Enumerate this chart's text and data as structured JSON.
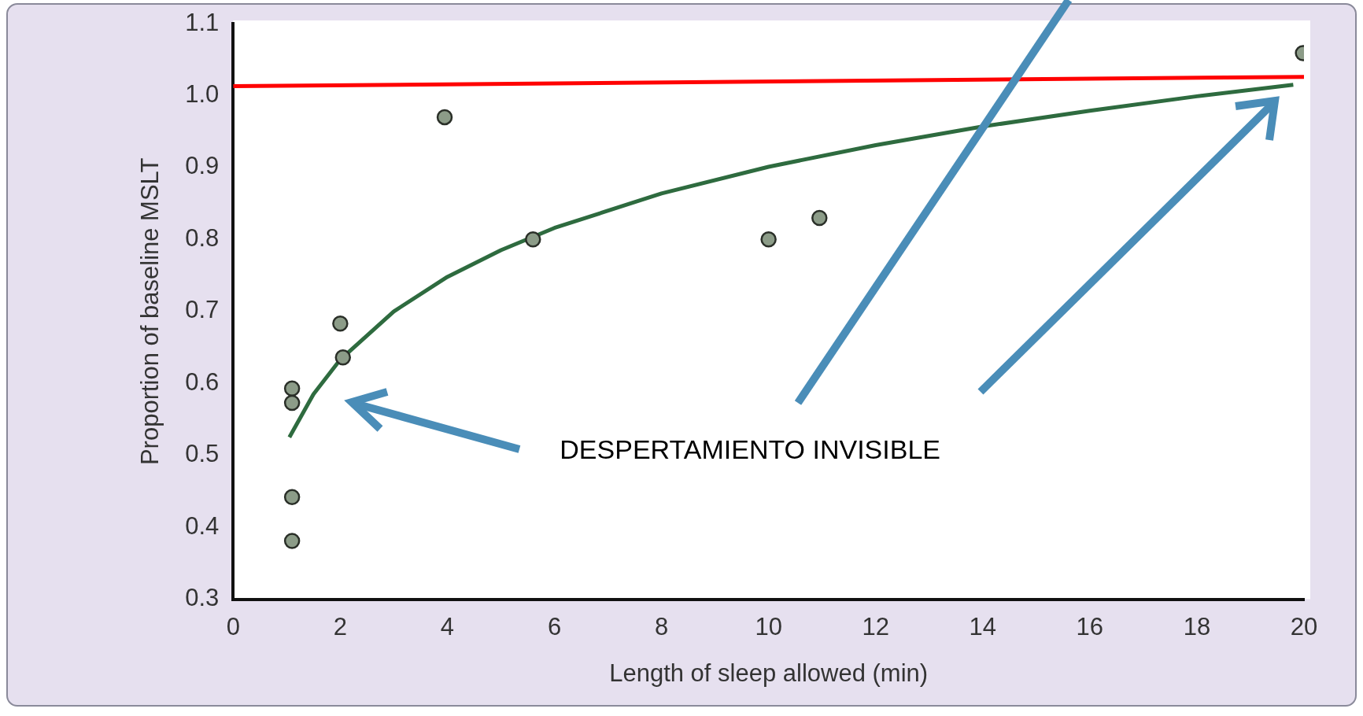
{
  "chart_data": {
    "type": "scatter",
    "xlabel": "Length of sleep allowed (min)",
    "ylabel": "Proportion of baseline MSLT",
    "xlim": [
      0,
      20
    ],
    "xticks": [
      0,
      2,
      4,
      6,
      8,
      10,
      12,
      14,
      16,
      18,
      20
    ],
    "ylim": [
      0.3,
      1.1
    ],
    "yticks": [
      {
        "value": 0.3,
        "label": "0.3"
      },
      {
        "value": 0.4,
        "label": "0.4"
      },
      {
        "value": 0.5,
        "label": "0.5"
      },
      {
        "value": 0.6,
        "label": "0.6"
      },
      {
        "value": 0.7,
        "label": "0.7"
      },
      {
        "value": 0.8,
        "label": "0.8"
      },
      {
        "value": 0.9,
        "label": "0.9"
      },
      {
        "value": 1.0,
        "label": "1.0"
      },
      {
        "value": 1.1,
        "label": "1.1"
      }
    ],
    "grid": false,
    "legend": false,
    "marker": "circle",
    "annotations": [
      "DESPERTAMIENTO INVISIBLE"
    ],
    "series": [
      {
        "color": "#8c9c88",
        "x": [
          1.1,
          1.1,
          1.1,
          1.1,
          2.0,
          2.05,
          3.95,
          5.6,
          10.0,
          10.95,
          19.98
        ],
        "values": [
          0.593,
          0.573,
          0.442,
          0.381,
          0.683,
          0.636,
          0.97,
          0.8,
          0.8,
          0.83,
          1.059
        ]
      },
      {
        "type": "line",
        "color": "#2e6b3f",
        "marker": "none",
        "x": [
          1.05,
          1.5,
          2,
          3,
          4,
          5,
          6,
          8,
          10,
          12,
          14,
          16,
          18,
          19.8
        ],
        "values": [
          0.525,
          0.585,
          0.633,
          0.7,
          0.748,
          0.785,
          0.816,
          0.864,
          0.901,
          0.931,
          0.957,
          0.979,
          0.999,
          1.015
        ]
      },
      {
        "type": "line",
        "color": "#ff0000",
        "marker": "none",
        "x": [
          0,
          20
        ],
        "values": [
          1.013,
          1.026
        ]
      }
    ]
  }
}
